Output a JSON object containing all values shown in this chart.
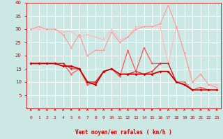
{
  "background_color": "#cce8e4",
  "grid_color": "#ffffff",
  "xlabel": "Vent moyen/en rafales ( km/h )",
  "xlabel_color": "#cc0000",
  "tick_color": "#cc0000",
  "xlim": [
    -0.5,
    23.5
  ],
  "ylim": [
    0,
    40
  ],
  "yticks": [
    5,
    10,
    15,
    20,
    25,
    30,
    35,
    40
  ],
  "xticks": [
    0,
    1,
    2,
    3,
    4,
    5,
    6,
    7,
    8,
    9,
    10,
    11,
    12,
    13,
    14,
    15,
    16,
    17,
    18,
    19,
    20,
    21,
    22,
    23
  ],
  "series": [
    {
      "x": [
        0,
        1,
        2,
        3,
        4,
        5,
        6,
        7,
        8,
        9,
        10,
        11,
        12,
        13,
        14,
        15,
        16,
        17,
        18,
        19,
        20,
        21,
        22,
        23
      ],
      "y": [
        30,
        30,
        30,
        30,
        29,
        29,
        27,
        28,
        27,
        26,
        30,
        26,
        27,
        31,
        31,
        31,
        31,
        17,
        31,
        21,
        10,
        13,
        9,
        9
      ],
      "color": "#ffbbbb",
      "lw": 0.8,
      "marker": "D",
      "ms": 1.5
    },
    {
      "x": [
        0,
        1,
        2,
        3,
        4,
        5,
        6,
        7,
        8,
        9,
        10,
        11,
        12,
        13,
        14,
        15,
        16,
        17,
        18,
        19,
        20,
        21,
        22,
        23
      ],
      "y": [
        30,
        31,
        30,
        30,
        28,
        23,
        28,
        20,
        22,
        22,
        29,
        25,
        27,
        30,
        31,
        31,
        32,
        39,
        31,
        21,
        10,
        13,
        9,
        8
      ],
      "color": "#ff9999",
      "lw": 0.8,
      "marker": "D",
      "ms": 1.5
    },
    {
      "x": [
        0,
        1,
        2,
        3,
        4,
        5,
        6,
        7,
        8,
        9,
        10,
        11,
        12,
        13,
        14,
        15,
        16,
        17,
        18,
        19,
        20,
        21,
        22,
        23
      ],
      "y": [
        17,
        17,
        17,
        17,
        17,
        13,
        15,
        9,
        10,
        14,
        15,
        12,
        22,
        14,
        23,
        17,
        17,
        17,
        10,
        10,
        7,
        8,
        7,
        7
      ],
      "color": "#ff5555",
      "lw": 0.9,
      "marker": "D",
      "ms": 1.5
    },
    {
      "x": [
        0,
        1,
        2,
        3,
        4,
        5,
        6,
        7,
        8,
        9,
        10,
        11,
        12,
        13,
        14,
        15,
        16,
        17,
        18,
        19,
        20,
        21,
        22,
        23
      ],
      "y": [
        17,
        17,
        17,
        17,
        17,
        15,
        15,
        10,
        10,
        14,
        15,
        13,
        13,
        14,
        13,
        14,
        17,
        17,
        10,
        9,
        7,
        7,
        7,
        7
      ],
      "color": "#dd2222",
      "lw": 0.9,
      "marker": "D",
      "ms": 1.5
    },
    {
      "x": [
        0,
        1,
        2,
        3,
        4,
        5,
        6,
        7,
        8,
        9,
        10,
        11,
        12,
        13,
        14,
        15,
        16,
        17,
        18,
        19,
        20,
        21,
        22,
        23
      ],
      "y": [
        17,
        17,
        17,
        17,
        16,
        16,
        15,
        10,
        9,
        14,
        15,
        13,
        13,
        13,
        13,
        13,
        14,
        14,
        10,
        9,
        7,
        7,
        7,
        7
      ],
      "color": "#cc0000",
      "lw": 1.3,
      "marker": "D",
      "ms": 2.0
    }
  ]
}
